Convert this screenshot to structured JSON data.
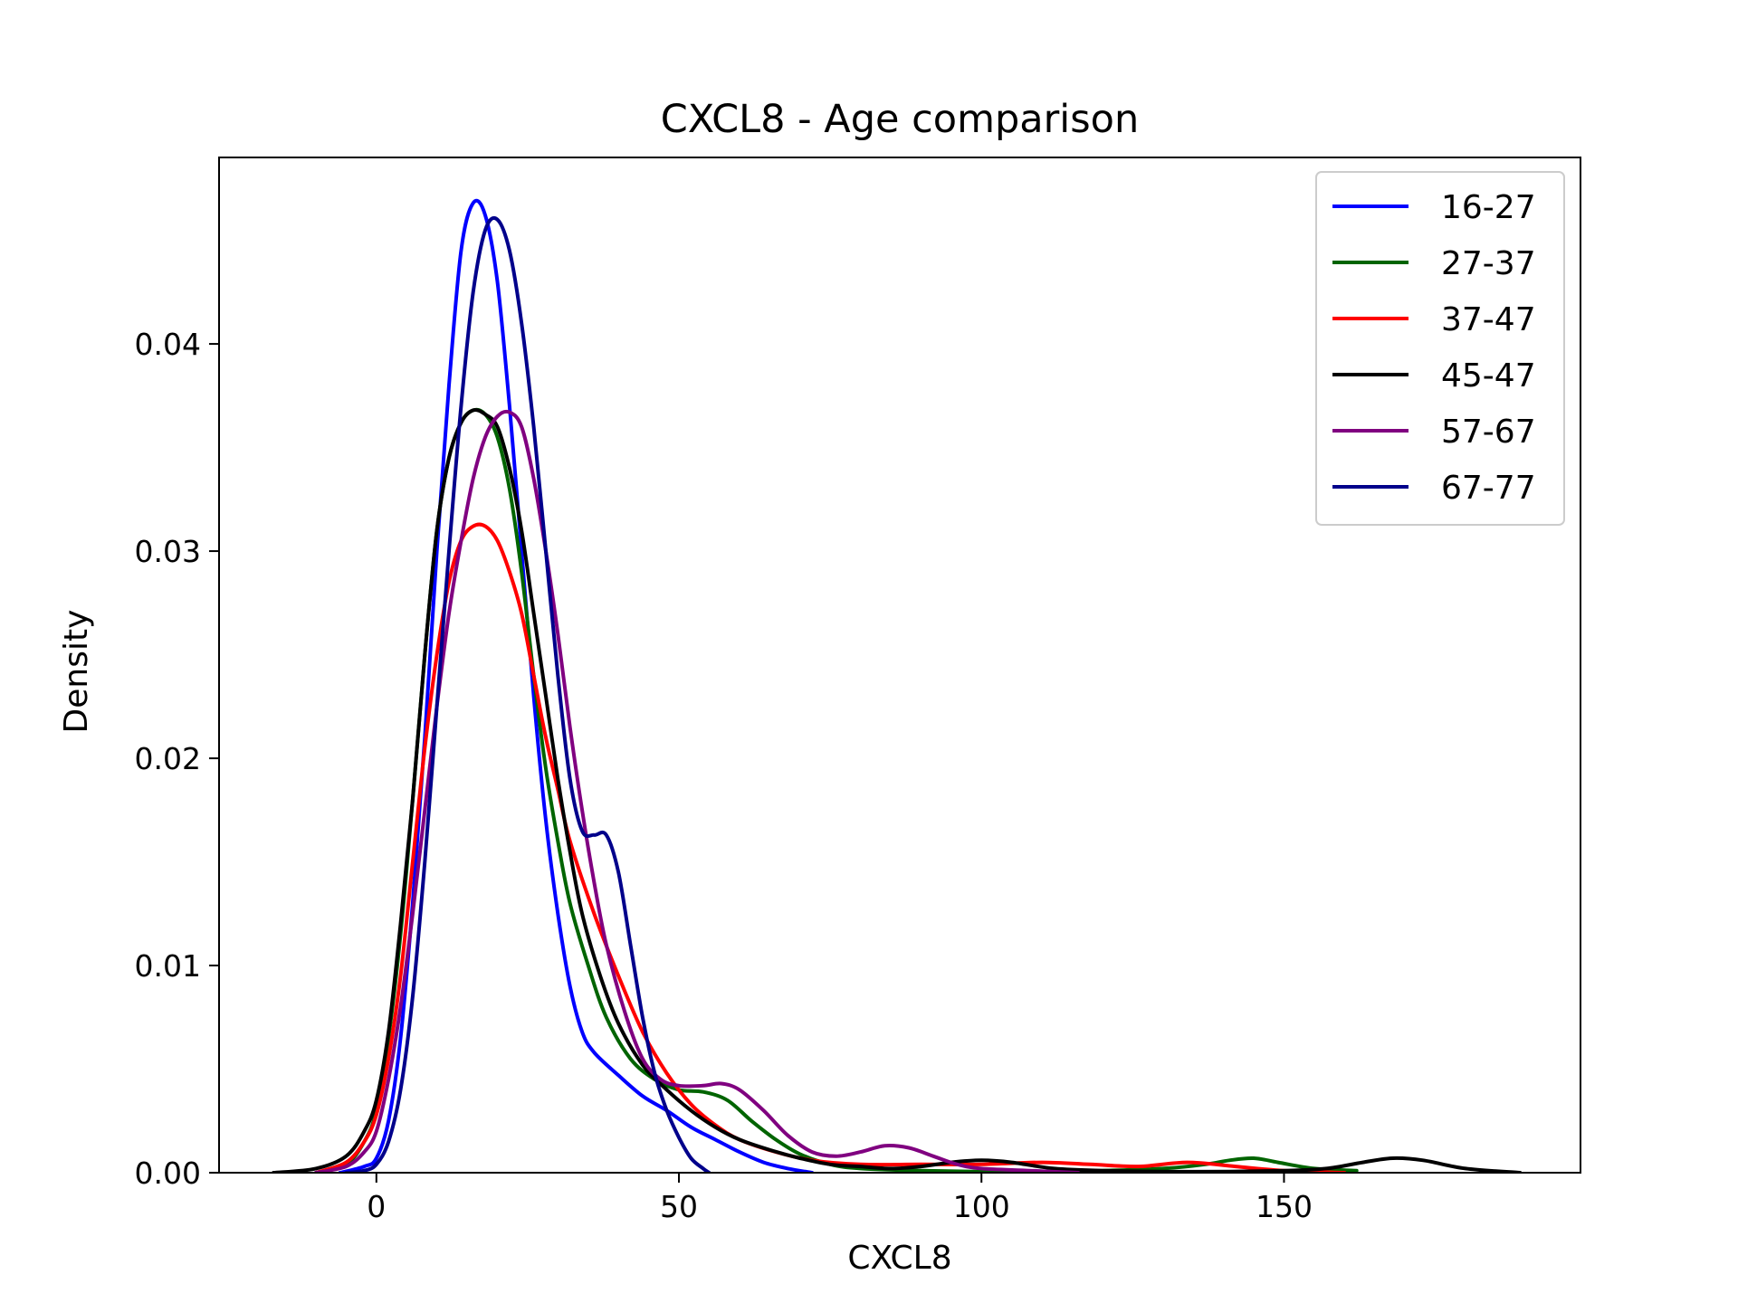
{
  "chart_data": {
    "type": "line",
    "title": "CXCL8 - Age comparison",
    "xlabel": "CXCL8",
    "ylabel": "Density",
    "xlim": [
      -26,
      199
    ],
    "ylim": [
      0,
      0.049
    ],
    "xticks": [
      0,
      50,
      100,
      150
    ],
    "xtick_labels": [
      "0",
      "50",
      "100",
      "150"
    ],
    "yticks": [
      0,
      0.01,
      0.02,
      0.03,
      0.04
    ],
    "ytick_labels": [
      "0.00",
      "0.01",
      "0.02",
      "0.03",
      "0.04"
    ],
    "grid": false,
    "legend_position": "top-right",
    "series": [
      {
        "name": "16-27",
        "color": "#0000ff",
        "points": [
          [
            -6,
            0
          ],
          [
            -2,
            0.0003
          ],
          [
            0,
            0.0007
          ],
          [
            2,
            0.0025
          ],
          [
            4,
            0.0065
          ],
          [
            6,
            0.013
          ],
          [
            8,
            0.021
          ],
          [
            10,
            0.03
          ],
          [
            12,
            0.038
          ],
          [
            14,
            0.0445
          ],
          [
            16,
            0.0468
          ],
          [
            18,
            0.0462
          ],
          [
            20,
            0.043
          ],
          [
            22,
            0.037
          ],
          [
            24,
            0.03
          ],
          [
            26,
            0.023
          ],
          [
            28,
            0.017
          ],
          [
            30,
            0.0125
          ],
          [
            32,
            0.009
          ],
          [
            34,
            0.0068
          ],
          [
            36,
            0.0058
          ],
          [
            40,
            0.0047
          ],
          [
            44,
            0.0037
          ],
          [
            48,
            0.003
          ],
          [
            52,
            0.0022
          ],
          [
            56,
            0.0016
          ],
          [
            60,
            0.001
          ],
          [
            64,
            0.0005
          ],
          [
            68,
            0.0002
          ],
          [
            72,
            0
          ]
        ]
      },
      {
        "name": "27-37",
        "color": "#006400",
        "points": [
          [
            -10,
            0
          ],
          [
            -5,
            0.0004
          ],
          [
            -2,
            0.0015
          ],
          [
            0,
            0.003
          ],
          [
            2,
            0.0065
          ],
          [
            4,
            0.0115
          ],
          [
            6,
            0.018
          ],
          [
            8,
            0.025
          ],
          [
            10,
            0.031
          ],
          [
            12,
            0.0345
          ],
          [
            14,
            0.0362
          ],
          [
            16,
            0.0368
          ],
          [
            18,
            0.0366
          ],
          [
            20,
            0.0355
          ],
          [
            22,
            0.033
          ],
          [
            24,
            0.029
          ],
          [
            26,
            0.024
          ],
          [
            28,
            0.0195
          ],
          [
            30,
            0.016
          ],
          [
            32,
            0.013
          ],
          [
            35,
            0.01
          ],
          [
            38,
            0.0075
          ],
          [
            42,
            0.0055
          ],
          [
            46,
            0.0045
          ],
          [
            50,
            0.004
          ],
          [
            54,
            0.0039
          ],
          [
            58,
            0.0035
          ],
          [
            62,
            0.0025
          ],
          [
            66,
            0.0016
          ],
          [
            70,
            0.0009
          ],
          [
            75,
            0.0004
          ],
          [
            80,
            0.0002
          ],
          [
            90,
            0.0001
          ],
          [
            100,
            5e-05
          ],
          [
            110,
            5e-05
          ],
          [
            120,
            0.0001
          ],
          [
            130,
            0.0002
          ],
          [
            137,
            0.0004
          ],
          [
            141,
            0.0006
          ],
          [
            145,
            0.0007
          ],
          [
            149,
            0.0005
          ],
          [
            155,
            0.0002
          ],
          [
            162,
            0.0001
          ]
        ]
      },
      {
        "name": "37-47",
        "color": "#ff0000",
        "points": [
          [
            -10,
            0
          ],
          [
            -5,
            0.0005
          ],
          [
            -2,
            0.0015
          ],
          [
            0,
            0.0028
          ],
          [
            2,
            0.0055
          ],
          [
            4,
            0.0095
          ],
          [
            6,
            0.015
          ],
          [
            8,
            0.0205
          ],
          [
            10,
            0.025
          ],
          [
            12,
            0.0285
          ],
          [
            14,
            0.0305
          ],
          [
            16,
            0.0312
          ],
          [
            18,
            0.0312
          ],
          [
            20,
            0.0305
          ],
          [
            22,
            0.029
          ],
          [
            24,
            0.027
          ],
          [
            26,
            0.024
          ],
          [
            28,
            0.021
          ],
          [
            30,
            0.0185
          ],
          [
            32,
            0.016
          ],
          [
            36,
            0.0125
          ],
          [
            40,
            0.0095
          ],
          [
            44,
            0.0068
          ],
          [
            48,
            0.0048
          ],
          [
            52,
            0.0033
          ],
          [
            56,
            0.0023
          ],
          [
            60,
            0.0016
          ],
          [
            66,
            0.001
          ],
          [
            72,
            0.0006
          ],
          [
            80,
            0.0004
          ],
          [
            90,
            0.0004
          ],
          [
            100,
            0.0004
          ],
          [
            110,
            0.0005
          ],
          [
            118,
            0.0004
          ],
          [
            126,
            0.0003
          ],
          [
            134,
            0.0005
          ],
          [
            142,
            0.0003
          ],
          [
            150,
            0.0001
          ],
          [
            160,
            0
          ]
        ]
      },
      {
        "name": "45-47",
        "color": "#000000",
        "points": [
          [
            -17,
            0
          ],
          [
            -10,
            0.0002
          ],
          [
            -5,
            0.0008
          ],
          [
            -2,
            0.002
          ],
          [
            0,
            0.0035
          ],
          [
            2,
            0.0068
          ],
          [
            4,
            0.012
          ],
          [
            6,
            0.018
          ],
          [
            8,
            0.025
          ],
          [
            10,
            0.031
          ],
          [
            12,
            0.0345
          ],
          [
            14,
            0.0362
          ],
          [
            16,
            0.0368
          ],
          [
            18,
            0.0366
          ],
          [
            20,
            0.036
          ],
          [
            22,
            0.034
          ],
          [
            24,
            0.031
          ],
          [
            26,
            0.027
          ],
          [
            28,
            0.023
          ],
          [
            30,
            0.019
          ],
          [
            32,
            0.0155
          ],
          [
            34,
            0.0125
          ],
          [
            37,
            0.0095
          ],
          [
            40,
            0.0072
          ],
          [
            44,
            0.0052
          ],
          [
            48,
            0.004
          ],
          [
            52,
            0.003
          ],
          [
            56,
            0.0022
          ],
          [
            60,
            0.0016
          ],
          [
            65,
            0.0011
          ],
          [
            70,
            0.0007
          ],
          [
            75,
            0.0004
          ],
          [
            80,
            0.0003
          ],
          [
            85,
            0.0002
          ],
          [
            90,
            0.0003
          ],
          [
            95,
            0.0005
          ],
          [
            100,
            0.0006
          ],
          [
            105,
            0.0005
          ],
          [
            112,
            0.0002
          ],
          [
            120,
            0.0001
          ],
          [
            135,
            5e-05
          ],
          [
            150,
            0.0001
          ],
          [
            157,
            0.0002
          ],
          [
            163,
            0.0005
          ],
          [
            168,
            0.0007
          ],
          [
            173,
            0.0006
          ],
          [
            180,
            0.0002
          ],
          [
            189,
            0
          ]
        ]
      },
      {
        "name": "57-67",
        "color": "#800080",
        "points": [
          [
            -10,
            0
          ],
          [
            -5,
            0.0003
          ],
          [
            -2,
            0.001
          ],
          [
            0,
            0.002
          ],
          [
            2,
            0.0045
          ],
          [
            4,
            0.008
          ],
          [
            6,
            0.0125
          ],
          [
            8,
            0.0175
          ],
          [
            10,
            0.0225
          ],
          [
            12,
            0.027
          ],
          [
            14,
            0.0305
          ],
          [
            16,
            0.0335
          ],
          [
            18,
            0.0355
          ],
          [
            20,
            0.0365
          ],
          [
            22,
            0.0367
          ],
          [
            24,
            0.036
          ],
          [
            26,
            0.0335
          ],
          [
            28,
            0.03
          ],
          [
            30,
            0.026
          ],
          [
            32,
            0.0215
          ],
          [
            34,
            0.0175
          ],
          [
            36,
            0.014
          ],
          [
            38,
            0.011
          ],
          [
            41,
            0.0078
          ],
          [
            44,
            0.0055
          ],
          [
            47,
            0.0045
          ],
          [
            50,
            0.0042
          ],
          [
            54,
            0.0042
          ],
          [
            57,
            0.0043
          ],
          [
            60,
            0.004
          ],
          [
            64,
            0.003
          ],
          [
            68,
            0.0018
          ],
          [
            72,
            0.001
          ],
          [
            76,
            0.0008
          ],
          [
            80,
            0.001
          ],
          [
            84,
            0.0013
          ],
          [
            88,
            0.0012
          ],
          [
            92,
            0.0008
          ],
          [
            96,
            0.0004
          ],
          [
            100,
            0.0002
          ],
          [
            108,
            0.0001
          ],
          [
            116,
            0
          ]
        ]
      },
      {
        "name": "67-77",
        "color": "#00008b",
        "points": [
          [
            -5,
            0
          ],
          [
            -2,
            0.0001
          ],
          [
            0,
            0.0004
          ],
          [
            2,
            0.0015
          ],
          [
            4,
            0.004
          ],
          [
            6,
            0.0085
          ],
          [
            8,
            0.015
          ],
          [
            10,
            0.0225
          ],
          [
            12,
            0.03
          ],
          [
            14,
            0.037
          ],
          [
            16,
            0.0425
          ],
          [
            18,
            0.0455
          ],
          [
            20,
            0.046
          ],
          [
            22,
            0.0445
          ],
          [
            24,
            0.041
          ],
          [
            26,
            0.036
          ],
          [
            28,
            0.03
          ],
          [
            30,
            0.024
          ],
          [
            32,
            0.019
          ],
          [
            34,
            0.0165
          ],
          [
            36,
            0.0163
          ],
          [
            38,
            0.0163
          ],
          [
            40,
            0.0145
          ],
          [
            42,
            0.011
          ],
          [
            44,
            0.0075
          ],
          [
            46,
            0.0048
          ],
          [
            48,
            0.003
          ],
          [
            50,
            0.0017
          ],
          [
            52,
            0.0007
          ],
          [
            54,
            0.0002
          ],
          [
            55,
            0
          ]
        ]
      }
    ]
  }
}
